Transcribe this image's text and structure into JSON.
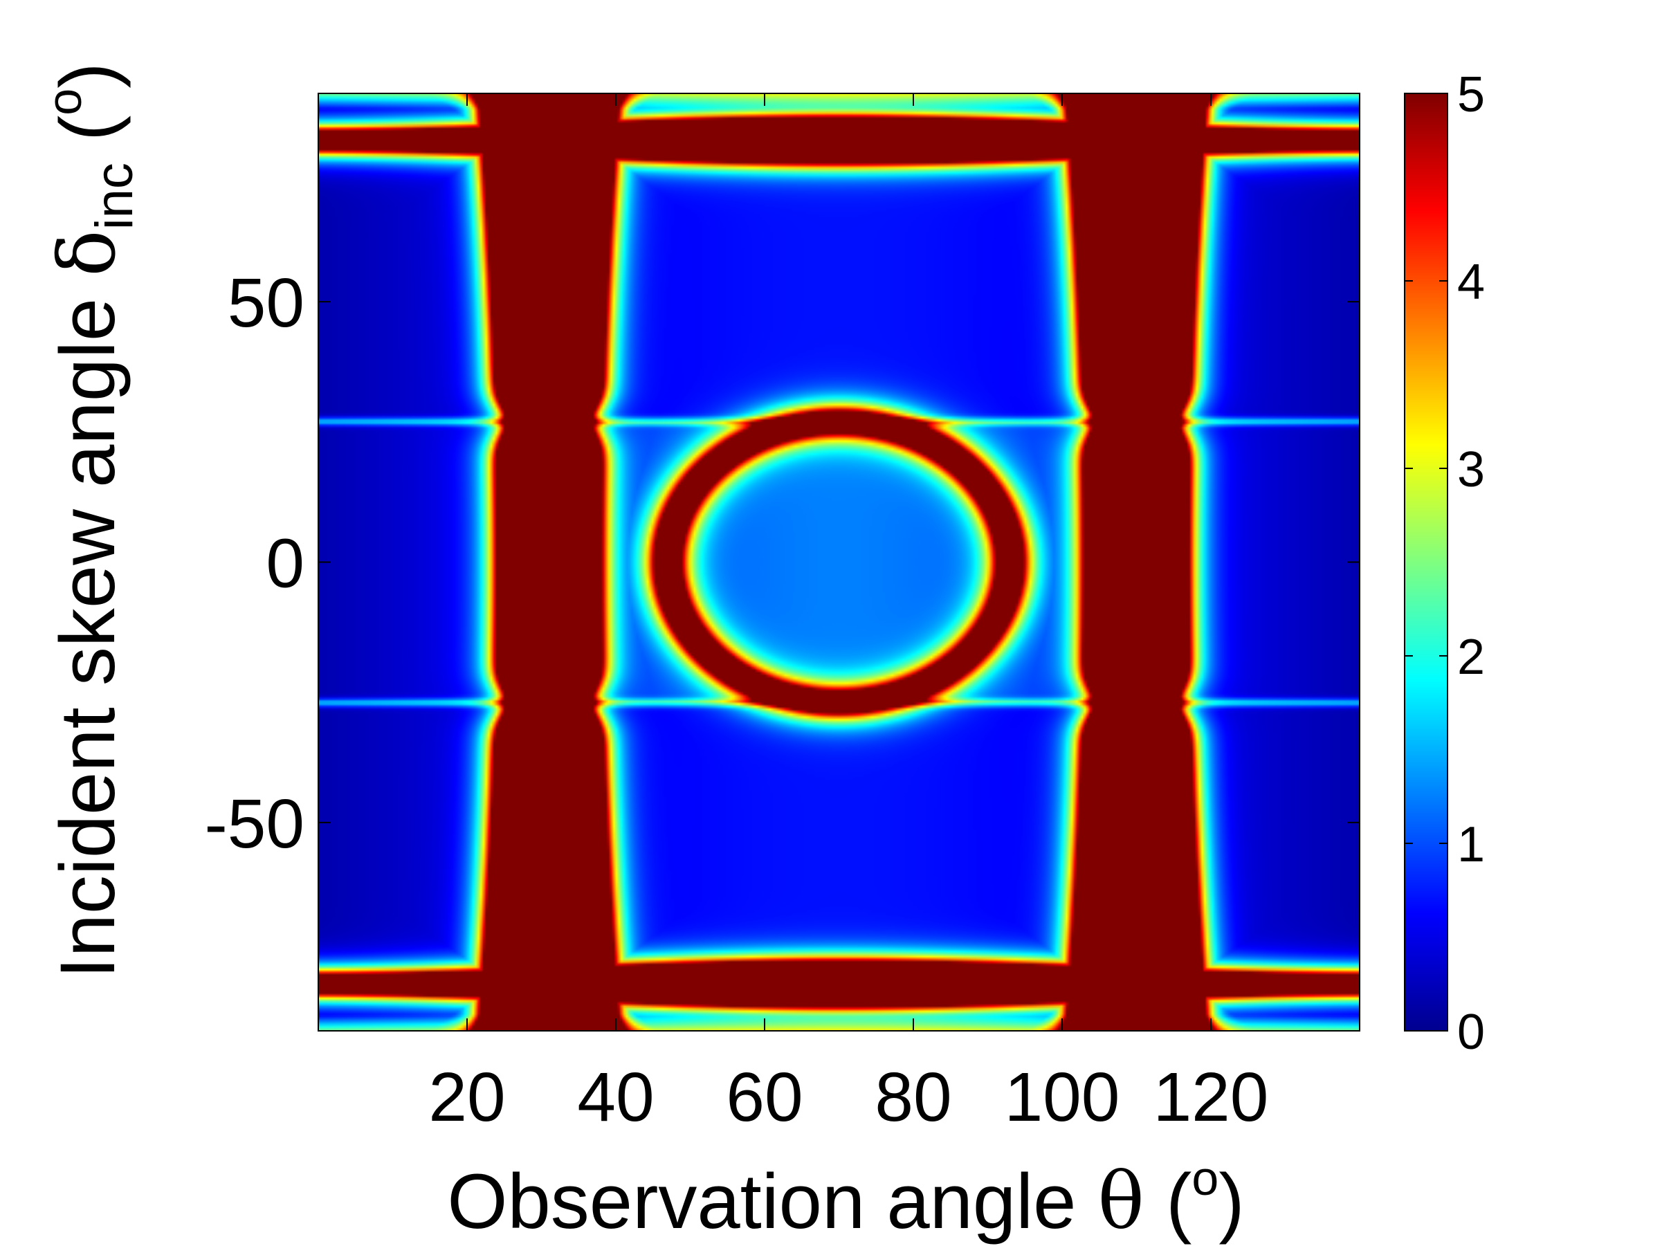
{
  "chart_data": {
    "type": "heatmap",
    "title": "",
    "xlabel": "Observation angle θ (°)",
    "xlabel_parts": {
      "text": "Observation angle ",
      "symbol": "θ",
      "unit_open": " (",
      "unit_sup": "o",
      "unit_close": ")"
    },
    "ylabel": "Incident skew angle δinc (°)",
    "ylabel_parts": {
      "text": "Incident skew angle ",
      "symbol": "δ",
      "sub": "inc",
      "unit_open": " (",
      "unit_sup": "o",
      "unit_close": ")"
    },
    "xlim": [
      0,
      140
    ],
    "ylim": [
      -90,
      90
    ],
    "x_ticks": [
      20,
      40,
      60,
      80,
      100,
      120
    ],
    "x_tick_labels": [
      "20",
      "40",
      "60",
      "80",
      "100",
      "120"
    ],
    "y_ticks": [
      50,
      0,
      -50
    ],
    "y_tick_labels": [
      "50",
      "0",
      "-50"
    ],
    "colorbar": {
      "colormap": "jet",
      "range": [
        0,
        5
      ],
      "ticks": [
        0,
        1,
        2,
        3,
        4,
        5
      ],
      "tick_labels": [
        "0",
        "1",
        "2",
        "3",
        "4",
        "5"
      ],
      "placement": "right"
    },
    "features": {
      "vertical_bands_theta": [
        31,
        110
      ],
      "horizontal_bands_delta": [
        -81,
        81
      ],
      "secondary_lines_delta": [
        -27,
        27
      ],
      "ellipse_center": [
        70,
        0
      ],
      "ellipse_semi_axes": [
        23,
        27
      ]
    },
    "grid": false
  }
}
